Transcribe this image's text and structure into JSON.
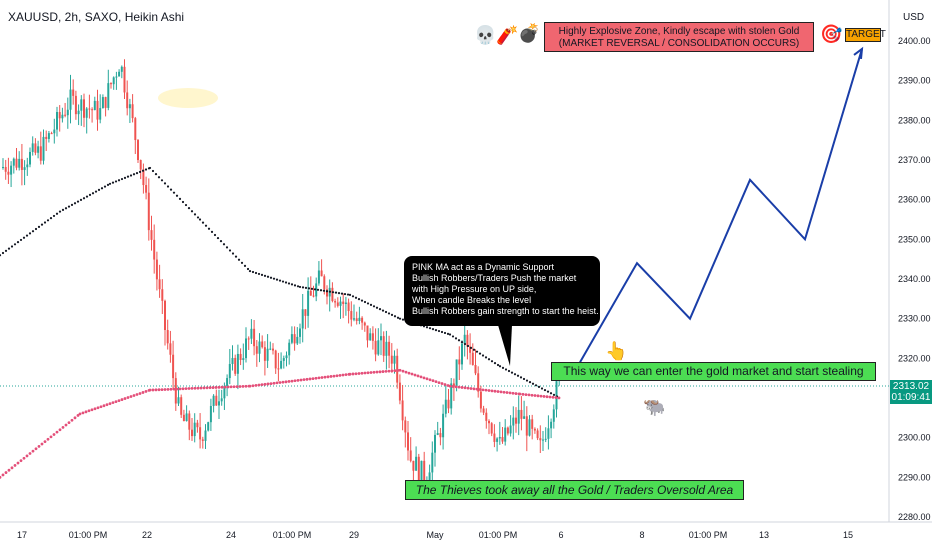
{
  "header": {
    "symbol_title": "XAUUSD, 2h, SAXO, Heikin Ashi",
    "currency": "USD"
  },
  "price_tag": {
    "price": "2313.02",
    "countdown": "01:09:41",
    "color": "#089981"
  },
  "annotations": {
    "red_box": [
      "Highly Explosive Zone, Kindly escape with stolen Gold",
      "(MARKET REVERSAL / CONSOLIDATION OCCURS)"
    ],
    "black_box": [
      "PINK MA act as a Dynamic Support",
      "Bullish Robbers/Traders Push the market",
      "with High Pressure on UP side,",
      "When candle Breaks the level",
      "Bullish Robbers gain strength to start the heist."
    ],
    "entry_label": "This way we can enter the gold market and start stealing",
    "oversold_label": "The Thieves took away all the Gold / Traders Oversold Area",
    "target_label": "TARGET"
  },
  "icons": [
    "skull-icon",
    "dynamite-icon",
    "bomb-icon",
    "target-icon",
    "pointing-hand-icon",
    "bull-icon"
  ],
  "colors": {
    "up": "#26a69a",
    "down": "#ef5350",
    "pink_ma": "#e4507a",
    "black_ma": "#131722",
    "projection": "#1a3ea8"
  },
  "chart_data": {
    "type": "candlestick",
    "title": "XAUUSD, 2h, SAXO, Heikin Ashi",
    "ylabel": "USD",
    "ylim": [
      2277,
      2410
    ],
    "y_ticks": [
      "2400.00",
      "2390.00",
      "2380.00",
      "2370.00",
      "2360.00",
      "2350.00",
      "2340.00",
      "2330.00",
      "2320.00",
      "2310.00",
      "2300.00",
      "2290.00",
      "2280.00"
    ],
    "x_ticks": [
      "17",
      "01:00 PM",
      "22",
      "24",
      "01:00 PM",
      "29",
      "May",
      "01:00 PM",
      "6",
      "8",
      "01:00 PM",
      "13",
      "15"
    ],
    "current_price": 2313.02,
    "series": [
      {
        "name": "Heikin Ashi",
        "description": "candles descend from ~2395 to ~2300 then range 2290-2330"
      },
      {
        "name": "Pink MA",
        "points": [
          [
            0,
            2290
          ],
          [
            80,
            2306
          ],
          [
            150,
            2312
          ],
          [
            250,
            2313
          ],
          [
            350,
            2316
          ],
          [
            400,
            2317
          ],
          [
            450,
            2313
          ],
          [
            520,
            2311
          ],
          [
            560,
            2310
          ]
        ]
      },
      {
        "name": "Black MA",
        "points": [
          [
            0,
            2346
          ],
          [
            60,
            2357
          ],
          [
            110,
            2364
          ],
          [
            150,
            2368
          ],
          [
            200,
            2355
          ],
          [
            250,
            2342
          ],
          [
            300,
            2338
          ],
          [
            350,
            2336
          ],
          [
            400,
            2330
          ],
          [
            450,
            2326
          ],
          [
            500,
            2318
          ],
          [
            560,
            2310
          ]
        ]
      },
      {
        "name": "Projection",
        "points": [
          [
            580,
            2319
          ],
          [
            637,
            2344
          ],
          [
            690,
            2330
          ],
          [
            750,
            2365
          ],
          [
            805,
            2350
          ],
          [
            862,
            2398
          ]
        ]
      }
    ]
  }
}
